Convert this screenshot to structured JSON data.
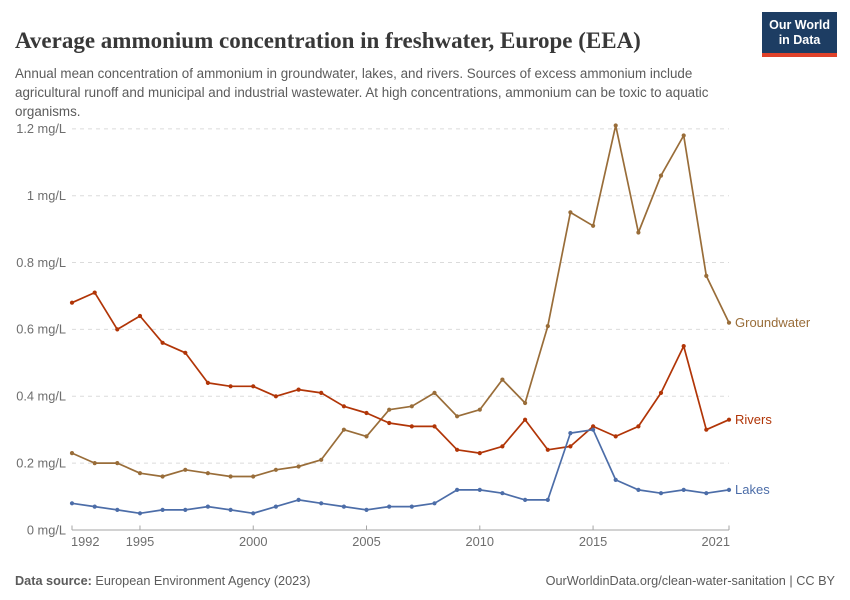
{
  "header": {
    "title": "Average ammonium concentration in freshwater, Europe (EEA)",
    "subtitle": "Annual mean concentration of ammonium in groundwater, lakes, and rivers. Sources of excess ammonium include agricultural runoff and municipal and industrial wastewater. At high concentrations, ammonium can be toxic to aquatic organisms.",
    "logo": {
      "line1": "Our World",
      "line2": "in Data",
      "bg": "#1D3D63",
      "accent": "#E0422A"
    }
  },
  "chart_data": {
    "type": "line",
    "x": [
      1992,
      1993,
      1994,
      1995,
      1996,
      1997,
      1998,
      1999,
      2000,
      2001,
      2002,
      2003,
      2004,
      2005,
      2006,
      2007,
      2008,
      2009,
      2010,
      2011,
      2012,
      2013,
      2014,
      2015,
      2016,
      2017,
      2018,
      2019,
      2020,
      2021
    ],
    "series": [
      {
        "name": "Groundwater",
        "color": "#996D39",
        "values": [
          0.23,
          0.2,
          0.2,
          0.17,
          0.16,
          0.18,
          0.17,
          0.16,
          0.16,
          0.18,
          0.19,
          0.21,
          0.3,
          0.28,
          0.36,
          0.37,
          0.41,
          0.34,
          0.36,
          0.45,
          0.38,
          0.61,
          0.95,
          0.91,
          1.21,
          0.89,
          1.06,
          1.18,
          0.76,
          0.62
        ]
      },
      {
        "name": "Rivers",
        "color": "#B13507",
        "values": [
          0.68,
          0.71,
          0.6,
          0.64,
          0.56,
          0.53,
          0.44,
          0.43,
          0.43,
          0.4,
          0.42,
          0.41,
          0.37,
          0.35,
          0.32,
          0.31,
          0.31,
          0.24,
          0.23,
          0.25,
          0.33,
          0.24,
          0.25,
          0.31,
          0.28,
          0.31,
          0.41,
          0.55,
          0.3,
          0.33
        ]
      },
      {
        "name": "Lakes",
        "color": "#4C6DA8",
        "values": [
          0.08,
          0.07,
          0.06,
          0.05,
          0.06,
          0.06,
          0.07,
          0.06,
          0.05,
          0.07,
          0.09,
          0.08,
          0.07,
          0.06,
          0.07,
          0.07,
          0.08,
          0.12,
          0.12,
          0.11,
          0.09,
          0.09,
          0.29,
          0.3,
          0.15,
          0.12,
          0.11,
          0.12,
          0.11,
          0.12
        ]
      }
    ],
    "title": "Average ammonium concentration in freshwater, Europe (EEA)",
    "xlabel": "",
    "ylabel": "mg/L",
    "ylim": [
      0,
      1.2
    ],
    "yticks": [
      0,
      0.2,
      0.4,
      0.6,
      0.8,
      1,
      1.2
    ],
    "ytick_labels": [
      "0 mg/L",
      "0.2 mg/L",
      "0.4 mg/L",
      "0.6 mg/L",
      "0.8 mg/L",
      "1 mg/L",
      "1.2 mg/L"
    ],
    "xticks": [
      1992,
      1995,
      2000,
      2005,
      2010,
      2015,
      2021
    ],
    "grid": "horizontal-dashed",
    "legend_position": "right-end-labels"
  },
  "footer": {
    "source_label": "Data source:",
    "source_text": " European Environment Agency (2023)",
    "right_link": "OurWorldinData.org/clean-water-sanitation",
    "right_sep": " | ",
    "right_license": "CC BY"
  }
}
